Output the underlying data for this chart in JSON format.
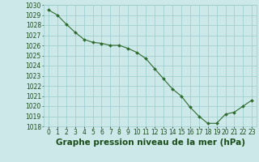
{
  "x": [
    0,
    1,
    2,
    3,
    4,
    5,
    6,
    7,
    8,
    9,
    10,
    11,
    12,
    13,
    14,
    15,
    16,
    17,
    18,
    19,
    20,
    21,
    22,
    23
  ],
  "y": [
    1029.5,
    1029.0,
    1028.1,
    1027.3,
    1026.6,
    1026.3,
    1026.2,
    1026.0,
    1026.0,
    1025.7,
    1025.3,
    1024.7,
    1023.7,
    1022.7,
    1021.7,
    1021.0,
    1019.9,
    1019.0,
    1018.3,
    1018.3,
    1019.2,
    1019.4,
    1020.0,
    1020.6
  ],
  "line_color": "#2d6a2d",
  "marker": "D",
  "marker_size": 2.0,
  "bg_color": "#cce8e8",
  "grid_color": "#99cccc",
  "title": "Graphe pression niveau de la mer (hPa)",
  "title_color": "#1a4d1a",
  "title_fontsize": 7.5,
  "ylim_min": 1018,
  "ylim_max": 1030,
  "ytick_step": 1,
  "xtick_labels": [
    "0",
    "1",
    "2",
    "3",
    "4",
    "5",
    "6",
    "7",
    "8",
    "9",
    "10",
    "11",
    "12",
    "13",
    "14",
    "15",
    "16",
    "17",
    "18",
    "19",
    "20",
    "21",
    "22",
    "23"
  ],
  "tick_fontsize": 5.5,
  "tick_color": "#1a4d1a",
  "line_width": 0.8,
  "marker_edge_width": 0.3
}
